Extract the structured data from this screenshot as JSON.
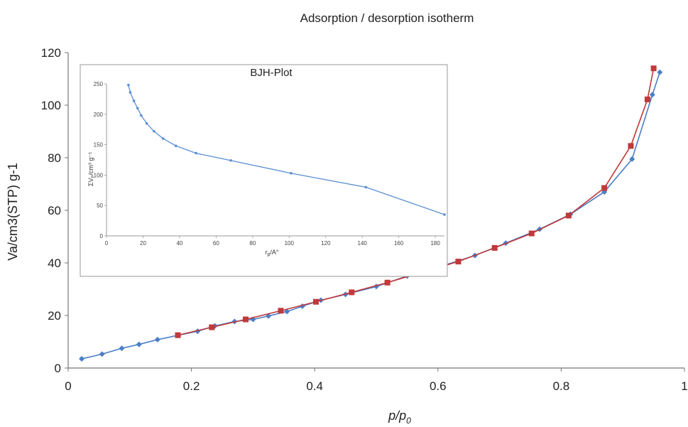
{
  "chart_data": [
    {
      "type": "line",
      "title": "Adsorption / desorption isotherm",
      "xlabel": "p/p",
      "xlabel_sub": "0",
      "ylabel": "Va/cm3(STP) g-1",
      "xlim": [
        0,
        1
      ],
      "ylim": [
        0,
        120
      ],
      "xticks": [
        "0",
        "0.2",
        "0.4",
        "0.6",
        "0.8",
        "1"
      ],
      "yticks": [
        "0",
        "20",
        "40",
        "60",
        "80",
        "100",
        "120"
      ],
      "grid": false,
      "series": [
        {
          "marker": "diamond",
          "color": "#4a7ec6",
          "x": [
            0.022,
            0.055,
            0.087,
            0.115,
            0.145,
            0.21,
            0.238,
            0.27,
            0.3,
            0.325,
            0.355,
            0.38,
            0.41,
            0.45,
            0.5,
            0.55,
            0.605,
            0.66,
            0.71,
            0.765,
            0.815,
            0.87,
            0.915,
            0.948,
            0.96
          ],
          "y": [
            3.5,
            5.3,
            7.5,
            9,
            10.8,
            14,
            16,
            17.7,
            18.5,
            19.8,
            21.5,
            23.5,
            25.8,
            28,
            31,
            35,
            38.7,
            42.8,
            47.5,
            52.8,
            58.5,
            67,
            79.5,
            104,
            112.5
          ]
        },
        {
          "marker": "square",
          "color": "#c0393b",
          "x": [
            0.178,
            0.233,
            0.288,
            0.345,
            0.402,
            0.46,
            0.518,
            0.575,
            0.633,
            0.692,
            0.752,
            0.812,
            0.87,
            0.913,
            0.94,
            0.95
          ],
          "y": [
            12.5,
            15.5,
            18.5,
            21.8,
            25.2,
            28.8,
            32.5,
            36.5,
            40.5,
            45.7,
            51.2,
            58,
            68.5,
            84.5,
            102.2,
            114
          ]
        }
      ]
    },
    {
      "type": "line",
      "title": "BJH-Plot",
      "xlabel": "r",
      "xlabel_sub": "p",
      "xlabel_tail": "/A°",
      "ylabel": "ΣVₚ/cm³ g⁻¹",
      "xlim": [
        0,
        185
      ],
      "ylim": [
        0,
        250
      ],
      "xticks": [
        "0",
        "20",
        "40",
        "60",
        "80",
        "100",
        "120",
        "140",
        "160",
        "180"
      ],
      "yticks": [
        "0",
        "50",
        "100",
        "150",
        "200",
        "250"
      ],
      "grid": false,
      "series": [
        {
          "marker": "dot",
          "color": "#5b8fd1",
          "x": [
            12,
            13,
            15,
            17,
            19,
            22,
            26,
            31,
            38,
            49,
            68,
            101,
            142,
            185
          ],
          "y": [
            248,
            236,
            222,
            210,
            198,
            185,
            172,
            160,
            148,
            136,
            124,
            103,
            80,
            35
          ]
        }
      ]
    }
  ]
}
